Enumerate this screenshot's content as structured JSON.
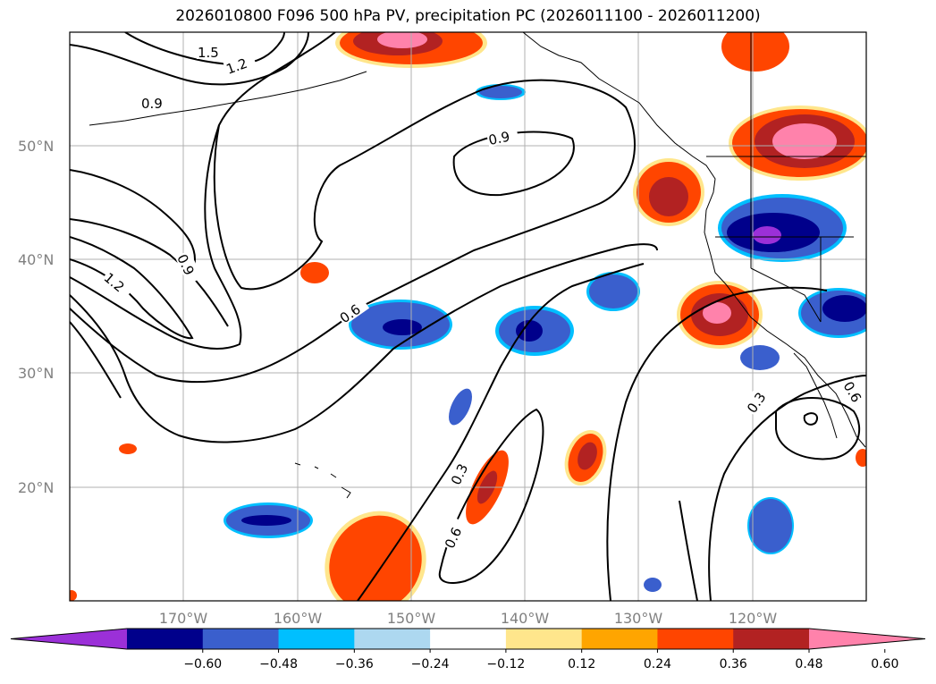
{
  "chart_data": {
    "type": "map-contour",
    "title": "2026010800 F096 500 hPa PV, precipitation PC (2026011100 - 2026011200)",
    "lat_ticks": [
      "20°N",
      "30°N",
      "40°N",
      "50°N"
    ],
    "lat_values": [
      20,
      30,
      40,
      50
    ],
    "lon_ticks": [
      "170°W",
      "160°W",
      "150°W",
      "140°W",
      "130°W",
      "120°W"
    ],
    "lon_values": [
      -170,
      -160,
      -150,
      -140,
      -130,
      -120
    ],
    "lon_range": [
      -180,
      -110
    ],
    "lat_range": [
      10,
      60
    ],
    "grid": true,
    "contour_levels": [
      0.3,
      0.6,
      0.9,
      1.2,
      1.5
    ],
    "contour_labels": [
      "1.5",
      "1.2",
      "0.9",
      "0.9",
      "0.9",
      "1.2",
      "0.6",
      "0.3",
      "0.6",
      "0.3",
      "0.6"
    ],
    "colorbar": {
      "ticks": [
        "−0.60",
        "−0.48",
        "−0.36",
        "−0.24",
        "−0.12",
        "0.12",
        "0.24",
        "0.36",
        "0.48",
        "0.60"
      ],
      "colors": [
        "#9b30d8",
        "#00008b",
        "#3a5fcd",
        "#00bfff",
        "#add8f0",
        "#ffffff",
        "#ffe68c",
        "#ffa500",
        "#ff4500",
        "#b22222",
        "#ff82ab"
      ],
      "extend": "both"
    }
  }
}
